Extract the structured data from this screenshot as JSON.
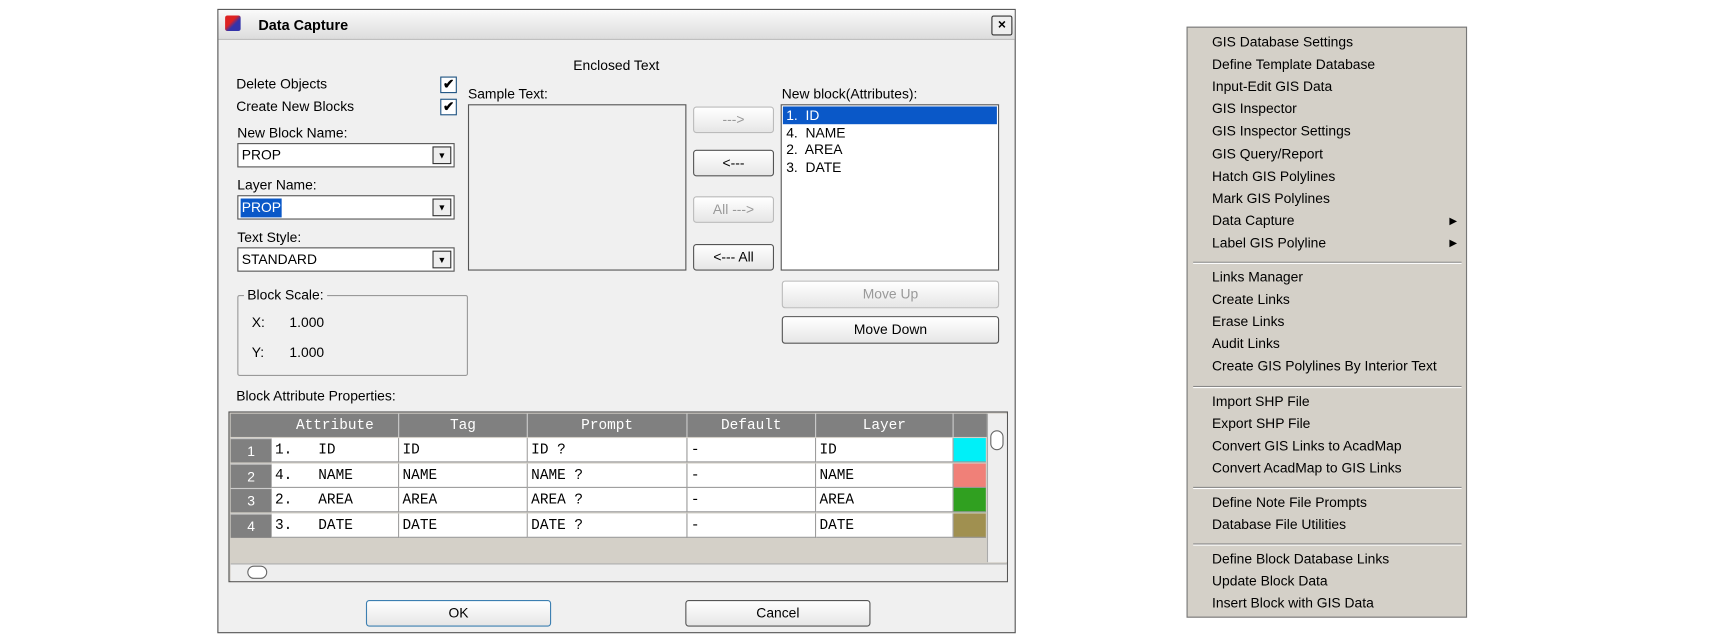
{
  "dialog": {
    "title": "Data Capture",
    "heading": "Enclosed Text",
    "options": [
      {
        "label": "Delete Objects",
        "checked": true
      },
      {
        "label": "Create New Blocks",
        "checked": true
      }
    ],
    "fields": [
      {
        "label": "New Block Name:",
        "value": "PROP",
        "selected": false
      },
      {
        "label": "Layer Name:",
        "value": "PROP",
        "selected": true
      },
      {
        "label": "Text Style:",
        "value": "STANDARD",
        "selected": false
      }
    ],
    "block_scale": {
      "title": "Block Scale:",
      "rows": [
        [
          "X:",
          "1.000"
        ],
        [
          "Y:",
          "1.000"
        ]
      ]
    },
    "sample_text": {
      "label": "Sample Text:"
    },
    "transfer_buttons": [
      {
        "label": "--->",
        "enabled": false
      },
      {
        "label": "<---",
        "enabled": true
      },
      {
        "label": "All --->",
        "enabled": false
      },
      {
        "label": "<--- All",
        "enabled": true
      }
    ],
    "new_block": {
      "label": "New block(Attributes):",
      "items": [
        "1.  ID",
        "4.  NAME",
        "2.  AREA",
        "3.  DATE"
      ],
      "selected": 0
    },
    "order_buttons": [
      {
        "label": "Move Up",
        "enabled": false
      },
      {
        "label": "Move Down",
        "enabled": true
      }
    ],
    "table": {
      "label": "Block Attribute Properties:",
      "columns": [
        "Attribute",
        "Tag",
        "Prompt",
        "Default",
        "Layer"
      ],
      "rows": [
        {
          "number": "1",
          "cells": [
            "1.   ID",
            "ID",
            "ID ?",
            "-",
            "ID"
          ],
          "color": "#00f0f8"
        },
        {
          "number": "2",
          "cells": [
            "4.   NAME",
            "NAME",
            "NAME ?",
            "-",
            "NAME"
          ],
          "color": "#f08078"
        },
        {
          "number": "3",
          "cells": [
            "2.   AREA",
            "AREA",
            "AREA ?",
            "-",
            "AREA"
          ],
          "color": "#30a020"
        },
        {
          "number": "4",
          "cells": [
            "3.   DATE",
            "DATE",
            "DATE ?",
            "-",
            "DATE"
          ],
          "color": "#a09050"
        }
      ]
    },
    "actions": [
      "OK",
      "Cancel"
    ]
  },
  "menu": {
    "groups": [
      [
        {
          "label": "GIS Database Settings",
          "submenu": false
        },
        {
          "label": "Define Template Database",
          "submenu": false
        },
        {
          "label": "Input-Edit GIS Data",
          "submenu": false
        },
        {
          "label": "GIS Inspector",
          "submenu": false
        },
        {
          "label": "GIS Inspector Settings",
          "submenu": false
        },
        {
          "label": "GIS Query/Report",
          "submenu": false
        },
        {
          "label": "Hatch GIS Polylines",
          "submenu": false
        },
        {
          "label": "Mark GIS Polylines",
          "submenu": false
        },
        {
          "label": "Data Capture",
          "submenu": true
        },
        {
          "label": "Label GIS Polyline",
          "submenu": true
        }
      ],
      [
        {
          "label": "Links Manager",
          "submenu": false
        },
        {
          "label": "Create Links",
          "submenu": false
        },
        {
          "label": "Erase Links",
          "submenu": false
        },
        {
          "label": "Audit Links",
          "submenu": false
        },
        {
          "label": "Create GIS Polylines By Interior Text",
          "submenu": false
        }
      ],
      [
        {
          "label": "Import SHP File",
          "submenu": false
        },
        {
          "label": "Export SHP File",
          "submenu": false
        },
        {
          "label": "Convert GIS Links to AcadMap",
          "submenu": false
        },
        {
          "label": "Convert AcadMap to GIS Links",
          "submenu": false
        }
      ],
      [
        {
          "label": "Define Note File Prompts",
          "submenu": false
        },
        {
          "label": "Database File Utilities",
          "submenu": false
        }
      ],
      [
        {
          "label": "Define Block Database Links",
          "submenu": false
        },
        {
          "label": "Update Block Data",
          "submenu": false
        },
        {
          "label": "Insert Block with GIS Data",
          "submenu": false
        }
      ]
    ]
  }
}
